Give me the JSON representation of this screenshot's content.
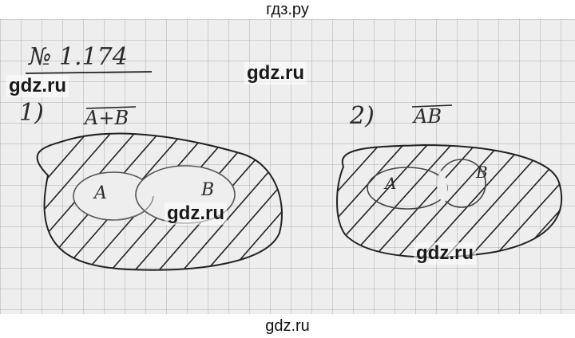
{
  "site": {
    "header_title": "гдз.ру",
    "footer_watermark": "gdz.ru"
  },
  "watermarks": [
    {
      "text": "gdz.ru"
    },
    {
      "text": "gdz.ru"
    },
    {
      "text": "gdz.ru"
    },
    {
      "text": "gdz.ru"
    }
  ],
  "problem": {
    "number": "№ 1.174",
    "part1": {
      "label": "1)",
      "expression": "A+B",
      "set_a_label": "A",
      "set_b_label": "B"
    },
    "part2": {
      "label": "2)",
      "expression": "AB",
      "set_a_label": "A",
      "set_b_label": "B"
    }
  }
}
